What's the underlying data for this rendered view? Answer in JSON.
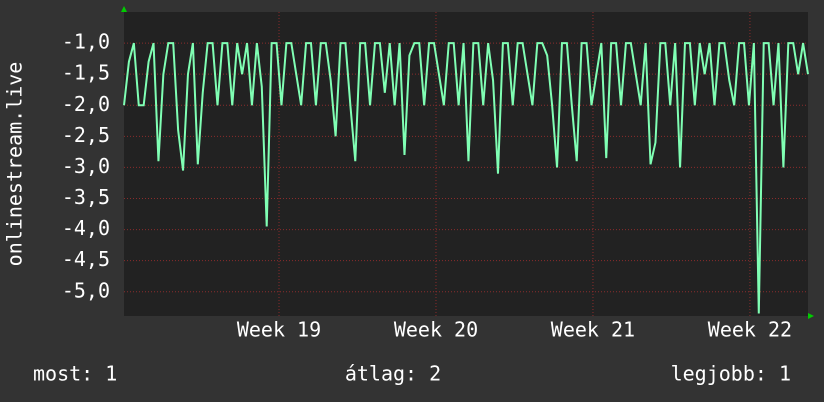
{
  "chart_data": {
    "type": "line",
    "y_label": "onlinestream.live",
    "color": "#80ffb4",
    "grid": true,
    "x": [
      0,
      1,
      2,
      3,
      4,
      5,
      6,
      7,
      8,
      9,
      10,
      11,
      12,
      13,
      14,
      15,
      16,
      17,
      18,
      19,
      20,
      21,
      22,
      23,
      24,
      25,
      26,
      27,
      28,
      29,
      30,
      31,
      32,
      33,
      34,
      35,
      36,
      37,
      38,
      39,
      40,
      41,
      42,
      43,
      44,
      45,
      46,
      47,
      48,
      49,
      50,
      51,
      52,
      53,
      54,
      55,
      56,
      57,
      58,
      59,
      60,
      61,
      62,
      63,
      64,
      65,
      66,
      67,
      68,
      69,
      70,
      71,
      72,
      73,
      74,
      75,
      76,
      77,
      78,
      79,
      80,
      81,
      82,
      83,
      84,
      85,
      86,
      87,
      88,
      89,
      90,
      91,
      92,
      93,
      94,
      95,
      96,
      97,
      98,
      99,
      100,
      101,
      102,
      103,
      104,
      105,
      106,
      107,
      108,
      109,
      110,
      111,
      112,
      113,
      114,
      115,
      116,
      117,
      118,
      119,
      120,
      121,
      122,
      123,
      124,
      125,
      126,
      127,
      128,
      129,
      130,
      131,
      132,
      133,
      134,
      135,
      136,
      137,
      138,
      139
    ],
    "values": [
      -2,
      -1.3,
      -1,
      -2,
      -2,
      -1.3,
      -1,
      -2.9,
      -1.5,
      -1,
      -1,
      -2.4,
      -3.05,
      -1.5,
      -1,
      -2.95,
      -1.8,
      -1,
      -1,
      -2,
      -1,
      -1,
      -2,
      -1,
      -1.5,
      -1,
      -2,
      -1,
      -1.7,
      -3.95,
      -1,
      -1,
      -2,
      -1,
      -1,
      -1.5,
      -2,
      -1,
      -1,
      -2,
      -1,
      -1,
      -1.6,
      -2.5,
      -1,
      -1,
      -2,
      -2.9,
      -1,
      -1,
      -2,
      -1,
      -1,
      -1.8,
      -1,
      -2,
      -1,
      -2.8,
      -1.2,
      -1,
      -1,
      -2,
      -1,
      -1,
      -1.5,
      -2,
      -1,
      -1,
      -2,
      -1,
      -2.9,
      -1,
      -1,
      -2,
      -1,
      -1.6,
      -3.1,
      -1,
      -1,
      -2,
      -1,
      -1,
      -1.5,
      -2,
      -1,
      -1,
      -1.2,
      -2,
      -3,
      -1,
      -1,
      -2,
      -2.9,
      -1,
      -1,
      -2,
      -1.5,
      -1,
      -2.85,
      -1,
      -1,
      -2,
      -1,
      -1,
      -1.5,
      -2,
      -1,
      -2.95,
      -2.6,
      -1,
      -1,
      -2,
      -1,
      -3,
      -1,
      -1,
      -2,
      -1,
      -1.5,
      -1,
      -2,
      -1,
      -1,
      -1.6,
      -2,
      -1,
      -1,
      -2,
      -1,
      -5.35,
      -1,
      -1,
      -2,
      -1,
      -3,
      -1,
      -1,
      -1.5,
      -1,
      -1.5
    ],
    "xlim": [
      0,
      139
    ],
    "xticks": [
      {
        "value": 31.5,
        "label": "Week 19"
      },
      {
        "value": 63.4,
        "label": "Week 20"
      },
      {
        "value": 95.3,
        "label": "Week 21"
      },
      {
        "value": 127.2,
        "label": "Week 22"
      }
    ],
    "ylim": [
      -5.39,
      -0.5
    ],
    "yticks": [
      {
        "value": -1,
        "label": "-1,0"
      },
      {
        "value": -1.5,
        "label": "-1,5"
      },
      {
        "value": -2,
        "label": "-2,0"
      },
      {
        "value": -2.5,
        "label": "-2,5"
      },
      {
        "value": -3,
        "label": "-3,0"
      },
      {
        "value": -3.5,
        "label": "-3,5"
      },
      {
        "value": -4,
        "label": "-4,0"
      },
      {
        "value": -4.5,
        "label": "-4,5"
      },
      {
        "value": -5,
        "label": "-5,0"
      }
    ],
    "footer": {
      "current": "most: 1",
      "average": "átlag: 2",
      "best": "legjobb: 1"
    }
  }
}
